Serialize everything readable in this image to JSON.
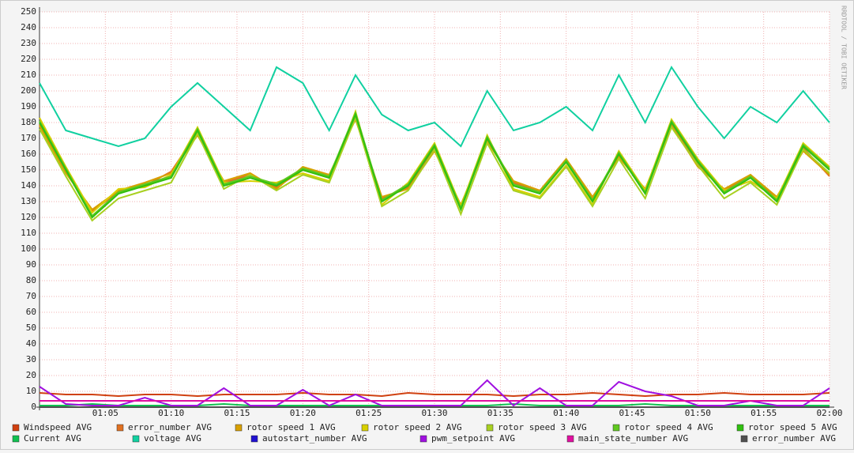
{
  "chart_data": {
    "type": "line",
    "watermark": "RRDTOOL / TOBI OETIKER",
    "x": [
      0,
      2,
      4,
      6,
      8,
      10,
      12,
      14,
      16,
      18,
      20,
      22,
      24,
      26,
      28,
      30,
      32,
      34,
      36,
      38,
      40,
      42,
      44,
      46,
      48,
      50,
      52,
      54,
      56,
      58,
      60
    ],
    "xlim": [
      0,
      60
    ],
    "xticks": [
      {
        "value": 5,
        "label": "01:05"
      },
      {
        "value": 10,
        "label": "01:10"
      },
      {
        "value": 15,
        "label": "01:15"
      },
      {
        "value": 20,
        "label": "01:20"
      },
      {
        "value": 25,
        "label": "01:25"
      },
      {
        "value": 30,
        "label": "01:30"
      },
      {
        "value": 35,
        "label": "01:35"
      },
      {
        "value": 40,
        "label": "01:40"
      },
      {
        "value": 45,
        "label": "01:45"
      },
      {
        "value": 50,
        "label": "01:50"
      },
      {
        "value": 55,
        "label": "01:55"
      },
      {
        "value": 60,
        "label": "02:00"
      }
    ],
    "ylim": [
      0,
      250
    ],
    "yticks": [
      0,
      10,
      20,
      30,
      40,
      50,
      60,
      70,
      80,
      90,
      100,
      110,
      120,
      130,
      140,
      150,
      160,
      170,
      180,
      190,
      200,
      210,
      220,
      230,
      240,
      250
    ],
    "grid": true,
    "series": [
      {
        "name": "Windspeed AVG",
        "color": "#d04010",
        "values": [
          9,
          8,
          8,
          7,
          8,
          8,
          7,
          8,
          8,
          8,
          9,
          8,
          8,
          7,
          9,
          8,
          8,
          8,
          7,
          8,
          8,
          9,
          8,
          7,
          8,
          8,
          9,
          8,
          8,
          8,
          9
        ]
      },
      {
        "name": "error_number AVG",
        "color": "#e07020",
        "values": [
          179,
          149,
          124,
          136,
          140,
          149,
          174,
          142,
          147,
          139,
          150,
          145,
          184,
          132,
          139,
          164,
          127,
          169,
          142,
          136,
          156,
          132,
          159,
          137,
          179,
          154,
          137,
          146,
          132,
          164,
          146
        ]
      },
      {
        "name": "rotor speed 1 AVG",
        "color": "#d8a000",
        "values": [
          178,
          148,
          125,
          137,
          142,
          148,
          172,
          143,
          148,
          138,
          152,
          147,
          182,
          133,
          138,
          162,
          128,
          168,
          143,
          137,
          157,
          133,
          158,
          138,
          178,
          152,
          138,
          147,
          133,
          162,
          147
        ]
      },
      {
        "name": "rotor speed 2 AVG",
        "color": "#d8d000",
        "values": [
          183,
          152,
          123,
          138,
          139,
          147,
          177,
          142,
          143,
          142,
          148,
          143,
          187,
          128,
          142,
          167,
          127,
          172,
          138,
          133,
          153,
          128,
          162,
          137,
          182,
          157,
          137,
          143,
          132,
          167,
          152
        ]
      },
      {
        "name": "rotor speed 3 AVG",
        "color": "#a8d020",
        "values": [
          176,
          146,
          118,
          132,
          137,
          142,
          173,
          138,
          147,
          137,
          147,
          142,
          183,
          127,
          137,
          163,
          122,
          167,
          137,
          132,
          152,
          127,
          157,
          132,
          177,
          153,
          132,
          142,
          128,
          163,
          148
        ]
      },
      {
        "name": "rotor speed 4 AVG",
        "color": "#60c820",
        "values": [
          181,
          151,
          121,
          136,
          141,
          146,
          176,
          141,
          146,
          141,
          151,
          146,
          186,
          131,
          141,
          166,
          126,
          171,
          141,
          136,
          156,
          131,
          161,
          136,
          181,
          156,
          136,
          146,
          131,
          166,
          151
        ]
      },
      {
        "name": "rotor speed 5 AVG",
        "color": "#30c010",
        "values": [
          180,
          150,
          120,
          135,
          140,
          145,
          175,
          140,
          145,
          140,
          150,
          145,
          185,
          130,
          140,
          165,
          125,
          170,
          140,
          135,
          155,
          130,
          160,
          135,
          180,
          155,
          135,
          145,
          130,
          165,
          150
        ]
      },
      {
        "name": "Current AVG",
        "color": "#10c050",
        "values": [
          1,
          1,
          2,
          1,
          1,
          1,
          1,
          2,
          1,
          1,
          1,
          1,
          1,
          1,
          1,
          1,
          1,
          1,
          2,
          1,
          1,
          1,
          1,
          2,
          1,
          1,
          1,
          1,
          1,
          1,
          1
        ]
      },
      {
        "name": "voltage AVG",
        "color": "#10d0a0",
        "values": [
          205,
          175,
          170,
          165,
          170,
          190,
          205,
          190,
          175,
          215,
          205,
          175,
          210,
          185,
          175,
          180,
          165,
          200,
          175,
          180,
          190,
          175,
          210,
          180,
          215,
          190,
          170,
          190,
          180,
          200,
          180
        ]
      },
      {
        "name": "autostart_number AVG",
        "color": "#2010d0",
        "values": [
          0,
          0,
          0,
          0,
          0,
          0,
          0,
          0,
          0,
          0,
          0,
          0,
          0,
          0,
          0,
          0,
          0,
          0,
          0,
          0,
          0,
          0,
          0,
          0,
          0,
          0,
          0,
          0,
          0,
          0,
          0
        ]
      },
      {
        "name": "pwm_setpoint AVG",
        "color": "#a010e0",
        "values": [
          13,
          2,
          1,
          1,
          6,
          1,
          1,
          12,
          1,
          1,
          11,
          1,
          8,
          1,
          1,
          1,
          1,
          17,
          1,
          12,
          1,
          1,
          16,
          10,
          7,
          1,
          1,
          4,
          1,
          1,
          12
        ]
      },
      {
        "name": "main_state_number AVG",
        "color": "#e010a0",
        "values": [
          4,
          4,
          4,
          4,
          4,
          4,
          4,
          4,
          4,
          4,
          4,
          4,
          4,
          4,
          4,
          4,
          4,
          4,
          4,
          4,
          4,
          4,
          4,
          4,
          4,
          4,
          4,
          4,
          4,
          4,
          4
        ]
      },
      {
        "name": "error_number AVG",
        "color": "#505050",
        "values": [
          0,
          0,
          0,
          0,
          0,
          0,
          0,
          0,
          0,
          0,
          0,
          0,
          0,
          0,
          0,
          0,
          0,
          0,
          0,
          0,
          0,
          0,
          0,
          0,
          0,
          0,
          0,
          0,
          0,
          0,
          0
        ]
      }
    ]
  }
}
